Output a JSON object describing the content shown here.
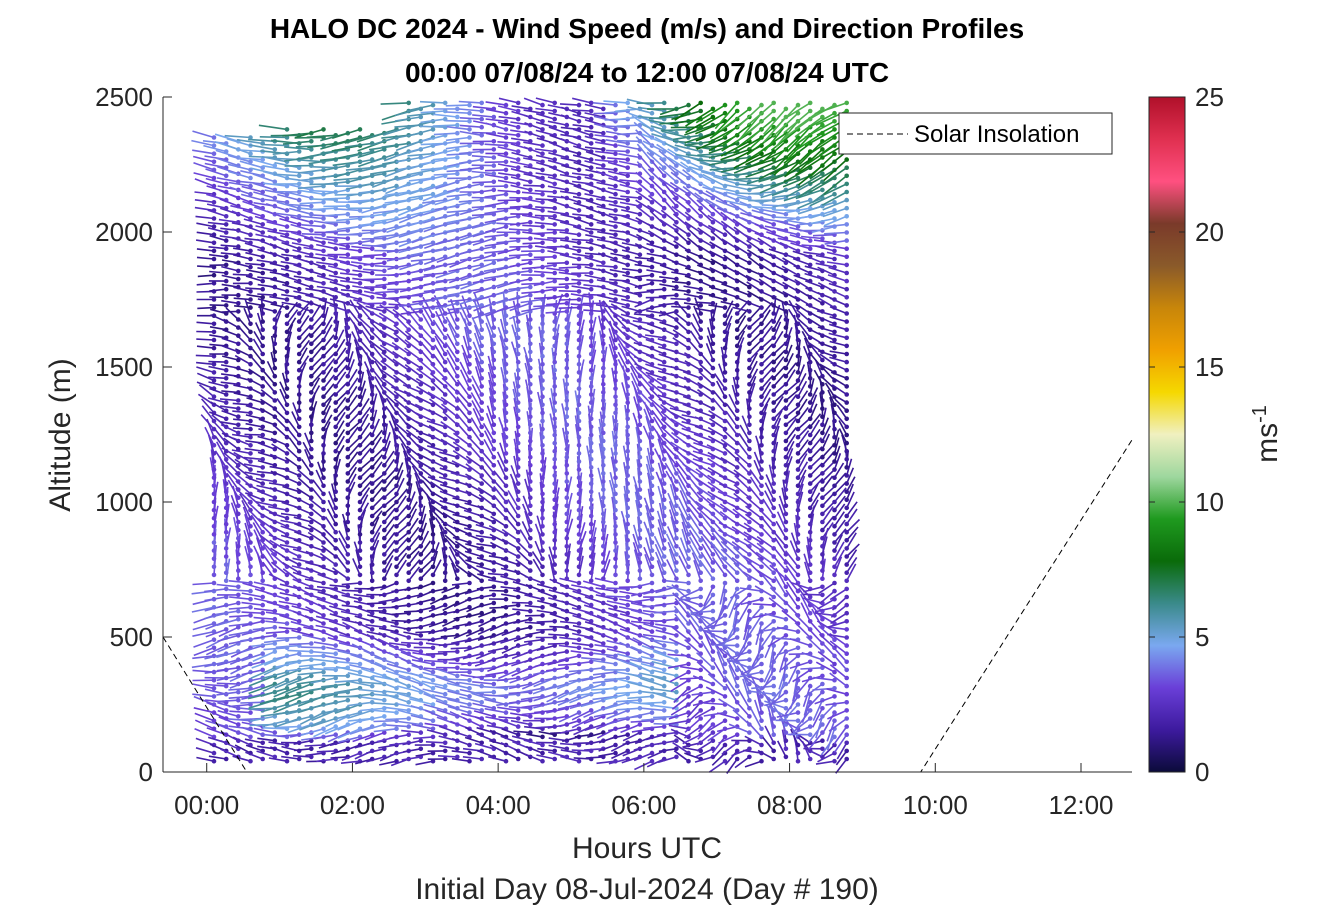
{
  "chart_data": {
    "type": "quiver",
    "title": "HALO DC 2024 - Wind Speed (m/s) and Direction Profiles",
    "subtitle": "00:00 07/08/24 to 12:00 07/08/24  UTC",
    "xlabel": "Hours UTC",
    "xlabel2": "Initial Day 08-Jul-2024 (Day # 190)",
    "ylabel": "Altitude (m)",
    "xlim": [
      -0.6,
      12.7
    ],
    "ylim": [
      0,
      2500
    ],
    "x_ticks": [
      0,
      2,
      4,
      6,
      8,
      10,
      12
    ],
    "x_tick_labels": [
      "00:00",
      "02:00",
      "04:00",
      "06:00",
      "08:00",
      "10:00",
      "12:00"
    ],
    "y_ticks": [
      0,
      500,
      1000,
      1500,
      2000,
      2500
    ],
    "y_tick_labels": [
      "0",
      "500",
      "1000",
      "1500",
      "2000",
      "2500"
    ],
    "colorbar": {
      "label_base": "ms",
      "label_exp": "-1",
      "range": [
        0,
        25
      ],
      "ticks": [
        0,
        5,
        10,
        15,
        20,
        25
      ],
      "tick_labels": [
        "0",
        "5",
        "10",
        "15",
        "20",
        "25"
      ],
      "colors": [
        "#0b0b3a",
        "#3d1a9e",
        "#6a3fd8",
        "#7aa8f0",
        "#3a8a8a",
        "#0a6b0a",
        "#1f9a1f",
        "#9ed79e",
        "#f0f0c0",
        "#f5d800",
        "#f0a000",
        "#c8860a",
        "#8a5a2a",
        "#7a3a2a",
        "#ff5080",
        "#e03050",
        "#b0102a"
      ]
    },
    "legend": {
      "entries": [
        "Solar Insolation"
      ],
      "position": "top-right"
    },
    "solar_insolation": {
      "x": [
        -0.6,
        0.55,
        6.5,
        9.8,
        12.7
      ],
      "y": [
        500,
        0,
        0,
        0,
        1230
      ]
    },
    "wind": {
      "time_start": 0.1,
      "time_step": 0.167,
      "profile_count": 53,
      "alt_start": 40,
      "alt_step": 30,
      "data_end_time": 8.8,
      "speed_range": [
        0,
        10
      ],
      "direction_range_deg": [
        0,
        360
      ]
    },
    "colors": {
      "axis": "#262626",
      "legend_line": "#000000"
    }
  }
}
